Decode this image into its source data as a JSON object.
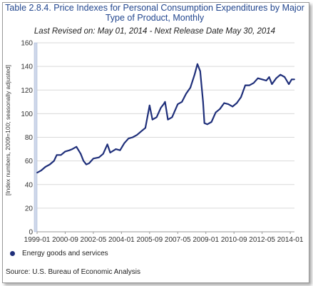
{
  "chart_data": {
    "type": "line",
    "title": "Table 2.8.4. Price Indexes for Personal Consumption Expenditures by Major Type of Product, Monthly",
    "subtitle": "Last Revised on: May 01, 2014 - Next Release Date May 30, 2014",
    "ylabel": "[Index numbers, 2009=100; seasonally adjusted]",
    "xlabel": "",
    "ylim": [
      0,
      160
    ],
    "yticks": [
      0,
      20,
      40,
      60,
      80,
      100,
      120,
      140,
      160
    ],
    "xrange": [
      "1999-01",
      "2014-04"
    ],
    "xticks": [
      "1999-01",
      "2000-09",
      "2002-05",
      "2004-01",
      "2005-09",
      "2007-05",
      "2009-01",
      "2010-09",
      "2012-05",
      "2014-01"
    ],
    "grid": "horizontal",
    "legend_position": "bottom-left",
    "series": [
      {
        "name": "Energy goods and services",
        "color": "#1f2f7a",
        "points": [
          [
            "1999-01",
            50
          ],
          [
            "1999-04",
            52
          ],
          [
            "1999-07",
            55
          ],
          [
            "1999-10",
            57
          ],
          [
            "2000-01",
            60
          ],
          [
            "2000-03",
            65
          ],
          [
            "2000-06",
            65
          ],
          [
            "2000-09",
            68
          ],
          [
            "2000-12",
            69
          ],
          [
            "2001-02",
            70
          ],
          [
            "2001-05",
            72
          ],
          [
            "2001-08",
            66
          ],
          [
            "2001-10",
            60
          ],
          [
            "2001-12",
            57
          ],
          [
            "2002-02",
            58
          ],
          [
            "2002-05",
            62
          ],
          [
            "2002-09",
            63
          ],
          [
            "2002-12",
            66
          ],
          [
            "2003-03",
            74
          ],
          [
            "2003-05",
            67
          ],
          [
            "2003-09",
            70
          ],
          [
            "2003-12",
            69
          ],
          [
            "2004-03",
            75
          ],
          [
            "2004-06",
            79
          ],
          [
            "2004-09",
            80
          ],
          [
            "2004-12",
            82
          ],
          [
            "2005-03",
            85
          ],
          [
            "2005-06",
            88
          ],
          [
            "2005-09",
            107
          ],
          [
            "2005-11",
            95
          ],
          [
            "2006-02",
            97
          ],
          [
            "2006-05",
            105
          ],
          [
            "2006-07",
            108
          ],
          [
            "2006-08",
            110
          ],
          [
            "2006-10",
            95
          ],
          [
            "2007-01",
            97
          ],
          [
            "2007-05",
            108
          ],
          [
            "2007-08",
            110
          ],
          [
            "2007-11",
            117
          ],
          [
            "2008-02",
            122
          ],
          [
            "2008-05",
            133
          ],
          [
            "2008-07",
            142
          ],
          [
            "2008-09",
            136
          ],
          [
            "2008-11",
            110
          ],
          [
            "2008-12",
            92
          ],
          [
            "2009-02",
            91
          ],
          [
            "2009-05",
            93
          ],
          [
            "2009-08",
            101
          ],
          [
            "2009-11",
            104
          ],
          [
            "2010-02",
            109
          ],
          [
            "2010-05",
            108
          ],
          [
            "2010-08",
            106
          ],
          [
            "2010-11",
            109
          ],
          [
            "2011-02",
            114
          ],
          [
            "2011-05",
            124
          ],
          [
            "2011-08",
            124
          ],
          [
            "2011-11",
            126
          ],
          [
            "2012-02",
            130
          ],
          [
            "2012-05",
            129
          ],
          [
            "2012-08",
            128
          ],
          [
            "2012-10",
            131
          ],
          [
            "2012-12",
            125
          ],
          [
            "2013-03",
            130
          ],
          [
            "2013-06",
            133
          ],
          [
            "2013-09",
            131
          ],
          [
            "2013-12",
            125
          ],
          [
            "2014-02",
            129
          ],
          [
            "2014-04",
            129
          ]
        ]
      }
    ]
  },
  "legend": {
    "label": "Energy goods and services"
  },
  "source": "Source: U.S. Bureau of Economic Analysis"
}
